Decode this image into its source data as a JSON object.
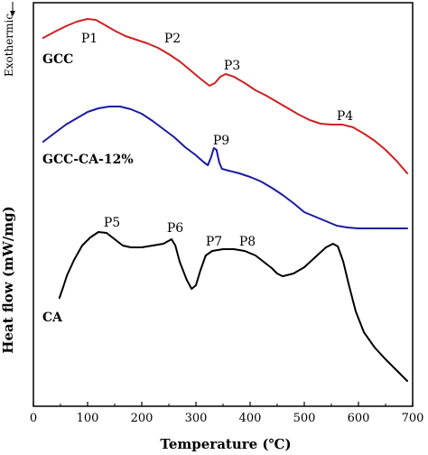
{
  "chart_data": {
    "type": "line",
    "title": "",
    "xlabel": "Temperature (℃)",
    "ylabel": "Heat flow (mW/mg)",
    "exothermic_label": "Exothermic",
    "exothermic_arrow_icon": "arrow-down-icon",
    "xlim": [
      0,
      700
    ],
    "xticks": [
      0,
      100,
      200,
      300,
      400,
      500,
      600,
      700
    ],
    "y_ticks_labeled": false,
    "grid": false,
    "legend": "none",
    "series": [
      {
        "name": "GCC",
        "color": "#cc2222",
        "points": [
          [
            18,
            42
          ],
          [
            40,
            35
          ],
          [
            60,
            29
          ],
          [
            80,
            24
          ],
          [
            100,
            21
          ],
          [
            115,
            22
          ],
          [
            130,
            27
          ],
          [
            150,
            34
          ],
          [
            170,
            40
          ],
          [
            190,
            44
          ],
          [
            210,
            48
          ],
          [
            230,
            53
          ],
          [
            250,
            60
          ],
          [
            270,
            68
          ],
          [
            290,
            78
          ],
          [
            310,
            88
          ],
          [
            325,
            95
          ],
          [
            335,
            92
          ],
          [
            345,
            85
          ],
          [
            355,
            82
          ],
          [
            370,
            85
          ],
          [
            390,
            92
          ],
          [
            410,
            100
          ],
          [
            430,
            106
          ],
          [
            450,
            113
          ],
          [
            470,
            120
          ],
          [
            490,
            127
          ],
          [
            510,
            133
          ],
          [
            530,
            137
          ],
          [
            550,
            138
          ],
          [
            570,
            138
          ],
          [
            590,
            141
          ],
          [
            610,
            148
          ],
          [
            630,
            156
          ],
          [
            650,
            166
          ],
          [
            670,
            178
          ],
          [
            690,
            192
          ]
        ]
      },
      {
        "name": "GCC-CA-12%",
        "color": "#1a1aa0",
        "points": [
          [
            18,
            157
          ],
          [
            40,
            147
          ],
          [
            60,
            138
          ],
          [
            80,
            131
          ],
          [
            100,
            124
          ],
          [
            120,
            120
          ],
          [
            140,
            118
          ],
          [
            160,
            118
          ],
          [
            180,
            121
          ],
          [
            200,
            126
          ],
          [
            220,
            134
          ],
          [
            240,
            143
          ],
          [
            260,
            152
          ],
          [
            280,
            163
          ],
          [
            300,
            172
          ],
          [
            315,
            180
          ],
          [
            322,
            183
          ],
          [
            328,
            174
          ],
          [
            333,
            164
          ],
          [
            338,
            166
          ],
          [
            343,
            180
          ],
          [
            348,
            187
          ],
          [
            360,
            189
          ],
          [
            380,
            192
          ],
          [
            400,
            196
          ],
          [
            420,
            201
          ],
          [
            440,
            208
          ],
          [
            460,
            216
          ],
          [
            480,
            225
          ],
          [
            500,
            235
          ],
          [
            520,
            240
          ],
          [
            540,
            245
          ],
          [
            560,
            250
          ],
          [
            580,
            252
          ],
          [
            600,
            253
          ],
          [
            640,
            253
          ],
          [
            690,
            253
          ]
        ]
      },
      {
        "name": "CA",
        "color": "#000000",
        "points": [
          [
            48,
            330
          ],
          [
            55,
            318
          ],
          [
            62,
            305
          ],
          [
            75,
            288
          ],
          [
            90,
            272
          ],
          [
            105,
            263
          ],
          [
            120,
            257
          ],
          [
            135,
            258
          ],
          [
            150,
            265
          ],
          [
            165,
            272
          ],
          [
            180,
            274
          ],
          [
            200,
            274
          ],
          [
            220,
            272
          ],
          [
            240,
            270
          ],
          [
            255,
            265
          ],
          [
            262,
            272
          ],
          [
            270,
            290
          ],
          [
            283,
            310
          ],
          [
            292,
            320
          ],
          [
            300,
            316
          ],
          [
            308,
            300
          ],
          [
            318,
            283
          ],
          [
            330,
            278
          ],
          [
            350,
            276
          ],
          [
            370,
            276
          ],
          [
            390,
            278
          ],
          [
            410,
            283
          ],
          [
            425,
            290
          ],
          [
            440,
            297
          ],
          [
            450,
            303
          ],
          [
            460,
            306
          ],
          [
            480,
            303
          ],
          [
            500,
            296
          ],
          [
            520,
            285
          ],
          [
            540,
            274
          ],
          [
            553,
            270
          ],
          [
            562,
            273
          ],
          [
            572,
            290
          ],
          [
            582,
            315
          ],
          [
            595,
            345
          ],
          [
            610,
            368
          ],
          [
            630,
            385
          ],
          [
            650,
            398
          ],
          [
            670,
            410
          ],
          [
            690,
            422
          ]
        ]
      }
    ],
    "series_labels": [
      "GCC",
      "GCC-CA-12%",
      "CA"
    ],
    "peak_labels": [
      "P1",
      "P2",
      "P3",
      "P4",
      "P5",
      "P6",
      "P7",
      "P8",
      "P9"
    ]
  }
}
